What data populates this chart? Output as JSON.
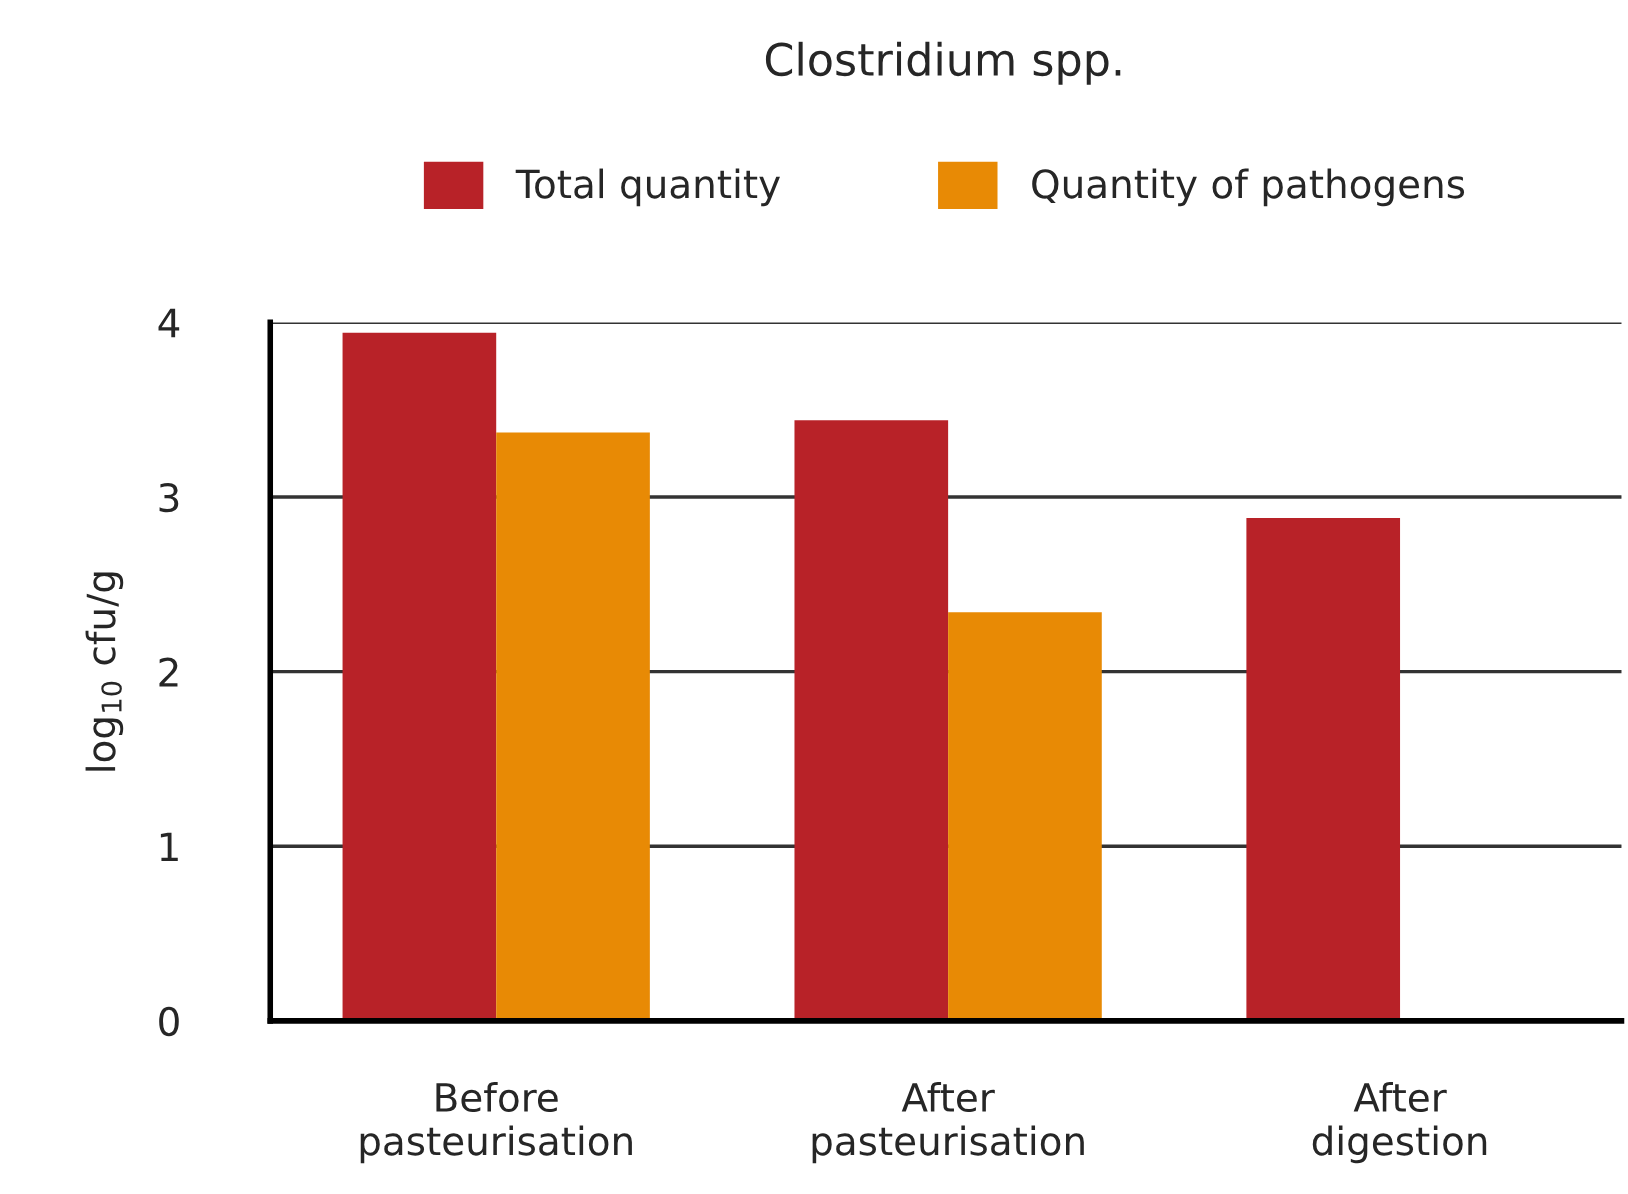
{
  "chart_data": {
    "type": "bar",
    "title": "Clostridium spp.",
    "ylabel": "log$_{10}$ cfu/g",
    "categories": [
      "Before\npasteurisation",
      "After\npasteurisation",
      "After\ndigestion"
    ],
    "series": [
      {
        "name": "Total quantity",
        "color": "#b82228",
        "values": [
          3.94,
          3.44,
          2.88
        ]
      },
      {
        "name": "Quantity of pathogens",
        "color": "#e88a05",
        "values": [
          3.37,
          2.34,
          null
        ]
      }
    ],
    "ylim": [
      0,
      4
    ],
    "yticks": [
      0,
      1,
      2,
      3,
      4
    ],
    "grid": "y",
    "legend": "top"
  }
}
